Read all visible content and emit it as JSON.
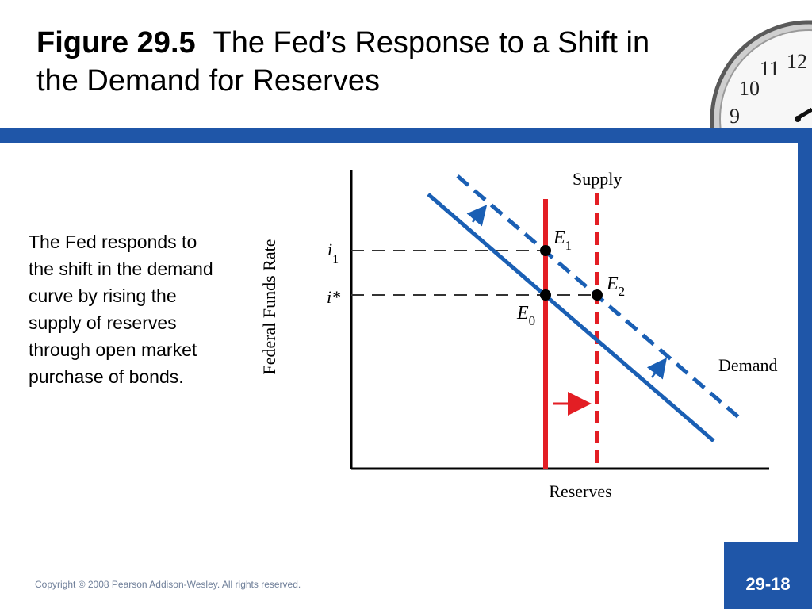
{
  "slide": {
    "figure_label": "Figure 29.5",
    "title": "The Fed’s Response to a Shift in the Demand for Reserves",
    "body": "The Fed responds to the shift in the demand curve by rising the supply of reserves through open market purchase of bonds.",
    "footer": "Copyright © 2008 Pearson Addison-Wesley. All rights reserved.",
    "page_number": "29-18"
  },
  "diagram": {
    "y_axis_label": "Federal Funds Rate",
    "x_axis_label": "Reserves",
    "supply_label": "Supply",
    "demand_label": "Demand",
    "rate_labels": {
      "i1_base": "i",
      "i1_sub": "1",
      "istar": "i*"
    },
    "points": {
      "E0": {
        "base": "E",
        "sub": "0"
      },
      "E1": {
        "base": "E",
        "sub": "1"
      },
      "E2": {
        "base": "E",
        "sub": "2"
      }
    },
    "colors": {
      "curve_blue": "#1a5fb4",
      "supply_red": "#e31e24",
      "brand_band": "#1f56a8"
    }
  },
  "clock": {
    "numerals": [
      "12",
      "11",
      "10",
      "9"
    ]
  }
}
